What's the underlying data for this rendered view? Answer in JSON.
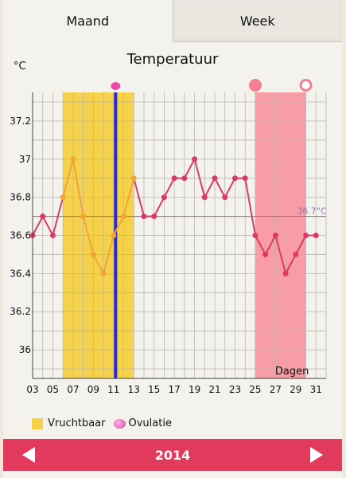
{
  "tabs": [
    {
      "label": "Maand",
      "active": true
    },
    {
      "label": "Week",
      "active": false
    }
  ],
  "header": {
    "title": "Temperatuur",
    "unit": "°C"
  },
  "legend": {
    "fertile_label": "Vruchtbaar",
    "ovulation_label": "Ovulatie"
  },
  "footer": {
    "year": "2014"
  },
  "colors": {
    "fertile": "#f6d24a",
    "period": "#f99ca5",
    "line_fertile": "#f0a43c",
    "line_normal": "#dc3a64",
    "ovulation_line": "#2a2ac8",
    "ovulation_marker": "#e84aa8",
    "reference_line": "#9a6cc4",
    "footer": "#e23a5c"
  },
  "chart_data": {
    "type": "line",
    "title": "Temperatuur",
    "ylabel": "°C",
    "xlabel": "Dagen",
    "x_tick_labels": [
      "03",
      "05",
      "07",
      "09",
      "11",
      "13",
      "15",
      "17",
      "19",
      "21",
      "23",
      "25",
      "27",
      "29",
      "31"
    ],
    "y_ticks": [
      36,
      36.2,
      36.4,
      36.6,
      36.8,
      37,
      37.2
    ],
    "y_tick_labels": [
      "36",
      "36.2",
      "36.4",
      "36.6",
      "36.8",
      "37",
      "37.2"
    ],
    "ylim": [
      35.85,
      37.35
    ],
    "xlim": [
      3,
      32
    ],
    "x": [
      3,
      4,
      5,
      6,
      7,
      8,
      9,
      10,
      11,
      12,
      13,
      14,
      15,
      16,
      17,
      18,
      19,
      20,
      21,
      22,
      23,
      24,
      25,
      26,
      27,
      28,
      29,
      30,
      31
    ],
    "values": [
      36.6,
      36.7,
      36.6,
      36.8,
      37.0,
      36.7,
      36.5,
      36.4,
      36.6,
      36.7,
      36.9,
      36.7,
      36.7,
      36.8,
      36.9,
      36.9,
      37.0,
      36.8,
      36.9,
      36.8,
      36.9,
      36.9,
      36.6,
      36.5,
      36.6,
      36.4,
      36.5,
      36.6,
      36.6
    ],
    "reference_line": {
      "value": 36.7,
      "label": "36.7°C"
    },
    "fertile_range": [
      6,
      13
    ],
    "ovulation_day": 11.2,
    "period_range": [
      25,
      30
    ],
    "period_markers": [
      {
        "day": 25,
        "filled": true
      },
      {
        "day": 30,
        "filled": false
      }
    ],
    "grid": true
  }
}
